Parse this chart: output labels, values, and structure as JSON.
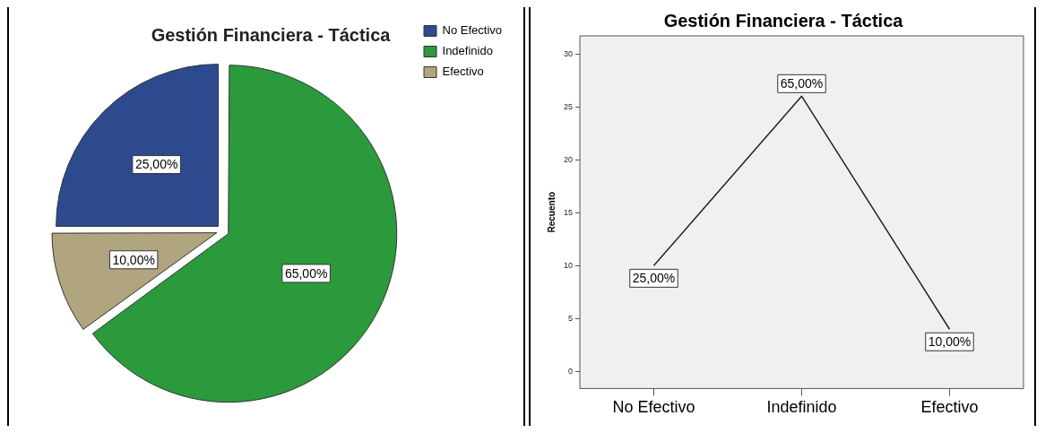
{
  "chart_data": [
    {
      "type": "pie",
      "title": "Gestión Financiera - Táctica",
      "categories": [
        "No Efectivo",
        "Indefinido",
        "Efectivo"
      ],
      "values": [
        25,
        65,
        10
      ],
      "colors": [
        "#2e4a8f",
        "#2a9a3c",
        "#b0a57f"
      ],
      "value_labels": [
        "25,00%",
        "65,00%",
        "10,00%"
      ],
      "legend": "top right"
    },
    {
      "type": "line",
      "title": "Gestión Financiera - Táctica",
      "ylabel": "Recuento",
      "categories": [
        "No Efectivo",
        "Indefinido",
        "Efectivo"
      ],
      "values": [
        10,
        26,
        4
      ],
      "color": "#222222",
      "annotations": [
        {
          "text": "25,00%",
          "x": "No Efectivo",
          "y": 10
        },
        {
          "text": "65,00%",
          "x": "Indefinido",
          "y": 26
        },
        {
          "text": "10,00%",
          "x": "Efectivo",
          "y": 4
        }
      ],
      "ylim": [
        -1.6,
        31.7
      ],
      "yticks": [
        0,
        5,
        10,
        15,
        20,
        25,
        30
      ],
      "grid": false,
      "legend": false
    }
  ]
}
